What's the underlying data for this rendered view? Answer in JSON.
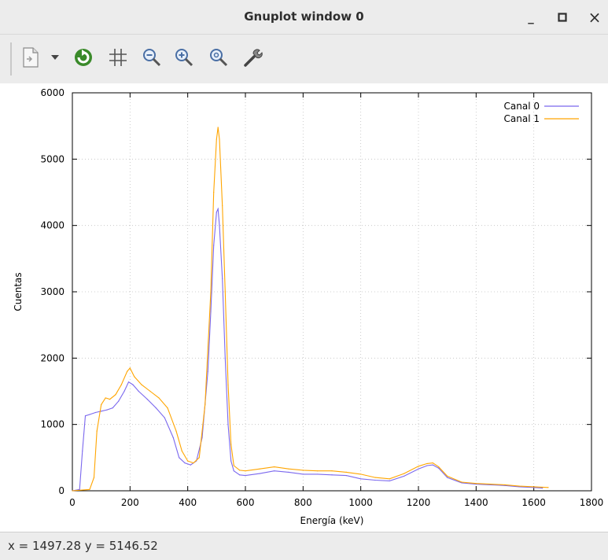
{
  "window": {
    "title": "Gnuplot window 0",
    "minimize_glyph": "_",
    "maximize_glyph": "□",
    "close_glyph": "×"
  },
  "toolbar": {
    "icons": [
      "copy-clipboard-icon",
      "dropdown-arrow-icon",
      "replot-icon",
      "grid-icon",
      "zoom-out-icon",
      "zoom-in-icon",
      "zoom-reset-icon",
      "settings-wrench-icon"
    ]
  },
  "status": {
    "text": "x = 1497.28 y = 5146.52"
  },
  "colors": {
    "canal0": "#7b68ee",
    "canal1": "#ffa500",
    "chrome": "#ececec"
  },
  "chart_data": {
    "type": "line",
    "title": "",
    "xlabel": "Energía (keV)",
    "ylabel": "Cuentas",
    "xlim": [
      0,
      1800
    ],
    "ylim": [
      0,
      6000
    ],
    "xticks": [
      0,
      200,
      400,
      600,
      800,
      1000,
      1200,
      1400,
      1600,
      1800
    ],
    "yticks": [
      0,
      1000,
      2000,
      3000,
      4000,
      5000,
      6000
    ],
    "grid": true,
    "legend_position": "top-right",
    "series": [
      {
        "name": "Canal 0",
        "color": "#7b68ee",
        "x": [
          0,
          25,
          35,
          45,
          60,
          80,
          100,
          120,
          140,
          160,
          180,
          195,
          210,
          230,
          260,
          290,
          320,
          350,
          370,
          390,
          410,
          430,
          450,
          470,
          480,
          490,
          500,
          505,
          510,
          520,
          530,
          540,
          550,
          560,
          580,
          600,
          650,
          700,
          750,
          800,
          850,
          900,
          950,
          1000,
          1050,
          1100,
          1150,
          1200,
          1230,
          1250,
          1270,
          1300,
          1350,
          1400,
          1450,
          1500,
          1550,
          1600,
          1630
        ],
        "y": [
          0,
          20,
          600,
          1130,
          1150,
          1180,
          1200,
          1220,
          1250,
          1350,
          1500,
          1640,
          1600,
          1500,
          1380,
          1250,
          1100,
          800,
          500,
          420,
          390,
          450,
          800,
          1800,
          2700,
          3700,
          4200,
          4250,
          4000,
          3200,
          2000,
          1000,
          450,
          300,
          240,
          230,
          260,
          300,
          280,
          250,
          250,
          240,
          230,
          180,
          160,
          150,
          220,
          330,
          380,
          390,
          340,
          200,
          120,
          100,
          90,
          80,
          60,
          50,
          40
        ]
      },
      {
        "name": "Canal 1",
        "color": "#ffa500",
        "x": [
          0,
          60,
          75,
          85,
          100,
          115,
          130,
          150,
          170,
          190,
          200,
          215,
          240,
          270,
          300,
          330,
          360,
          380,
          400,
          420,
          440,
          460,
          480,
          490,
          500,
          505,
          510,
          520,
          530,
          540,
          550,
          560,
          580,
          600,
          650,
          700,
          750,
          800,
          850,
          900,
          950,
          1000,
          1050,
          1100,
          1150,
          1200,
          1230,
          1250,
          1270,
          1300,
          1350,
          1400,
          1450,
          1500,
          1550,
          1600,
          1650
        ],
        "y": [
          0,
          20,
          200,
          900,
          1300,
          1400,
          1380,
          1450,
          1600,
          1800,
          1850,
          1720,
          1600,
          1500,
          1400,
          1250,
          900,
          600,
          450,
          420,
          500,
          1300,
          3000,
          4500,
          5300,
          5480,
          5300,
          4300,
          3000,
          1600,
          700,
          380,
          310,
          300,
          330,
          360,
          330,
          310,
          300,
          300,
          280,
          250,
          200,
          180,
          260,
          370,
          410,
          420,
          360,
          220,
          130,
          110,
          100,
          90,
          70,
          60,
          50
        ]
      }
    ]
  }
}
